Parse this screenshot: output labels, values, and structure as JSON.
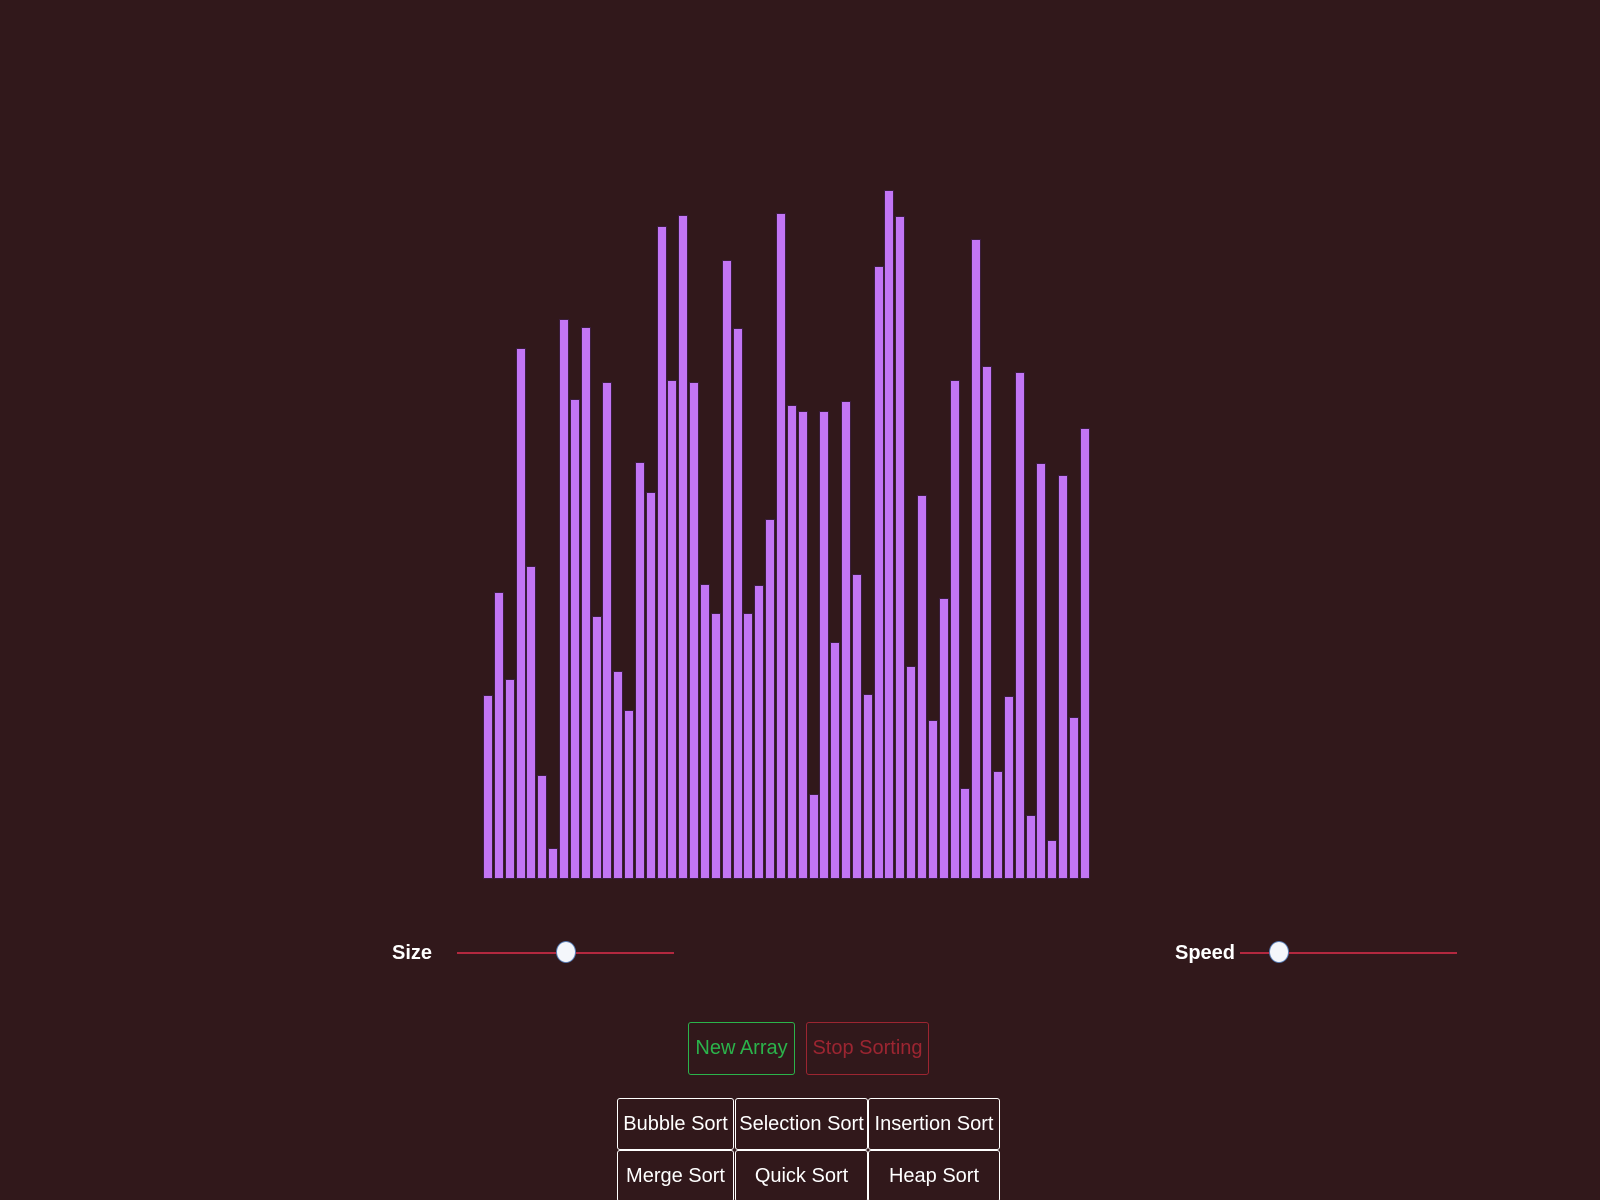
{
  "array": {
    "values": [
      184,
      287,
      200,
      531,
      313,
      104,
      31,
      560,
      480,
      552,
      263,
      497,
      208,
      169,
      417,
      387,
      653,
      499,
      664,
      497,
      295,
      266,
      619,
      551,
      266,
      294,
      360,
      666,
      474,
      468,
      85,
      468,
      237,
      478,
      305,
      185,
      613,
      689,
      663,
      213,
      384,
      159,
      281,
      499,
      91,
      640,
      513,
      108,
      183,
      507,
      64,
      416,
      39,
      404,
      162,
      451
    ],
    "bar_color": "#c275f5"
  },
  "controls": {
    "size": {
      "label": "Size",
      "value": 0.5
    },
    "speed": {
      "label": "Speed",
      "value": 0.18
    }
  },
  "buttons": {
    "new_array": "New Array",
    "stop_sorting": "Stop Sorting"
  },
  "algorithms": [
    {
      "label": "Bubble Sort"
    },
    {
      "label": "Selection Sort"
    },
    {
      "label": "Insertion Sort"
    },
    {
      "label": "Merge Sort"
    },
    {
      "label": "Quick Sort"
    },
    {
      "label": "Heap Sort"
    }
  ],
  "colors": {
    "background": "#31181b",
    "new_array": "#2bb34b",
    "stop_sorting": "#9c2531",
    "slider_track": "#b3283f"
  }
}
